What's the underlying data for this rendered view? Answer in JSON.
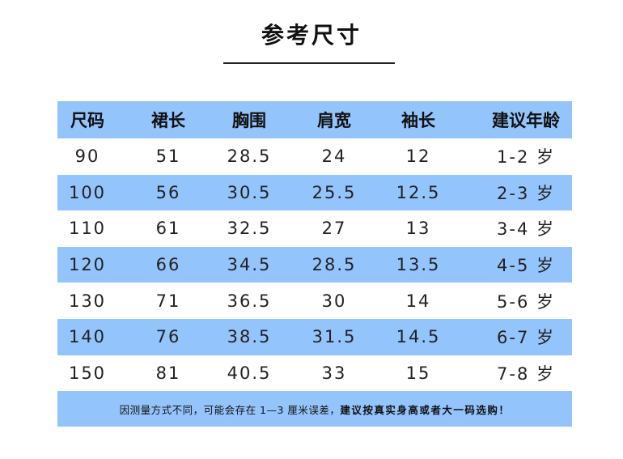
{
  "title": "参考尺寸",
  "colors": {
    "accent": "#94c4fc"
  },
  "table": {
    "headers": [
      "尺码",
      "裙长",
      "胸围",
      "肩宽",
      "袖长",
      "建议年龄"
    ],
    "rows": [
      [
        "90",
        "51",
        "28.5",
        "24",
        "12",
        "1-2 岁"
      ],
      [
        "100",
        "56",
        "30.5",
        "25.5",
        "12.5",
        "2-3 岁"
      ],
      [
        "110",
        "61",
        "32.5",
        "27",
        "13",
        "3-4 岁"
      ],
      [
        "120",
        "66",
        "34.5",
        "28.5",
        "13.5",
        "4-5 岁"
      ],
      [
        "130",
        "71",
        "36.5",
        "30",
        "14",
        "5-6 岁"
      ],
      [
        "140",
        "76",
        "38.5",
        "31.5",
        "14.5",
        "6-7 岁"
      ],
      [
        "150",
        "81",
        "40.5",
        "33",
        "15",
        "7-8 岁"
      ]
    ]
  },
  "footer": {
    "note": "因测量方式不同，可能会存在 1—3 厘米误差，",
    "advice": "建议按真实身高或者大一码选购！"
  }
}
